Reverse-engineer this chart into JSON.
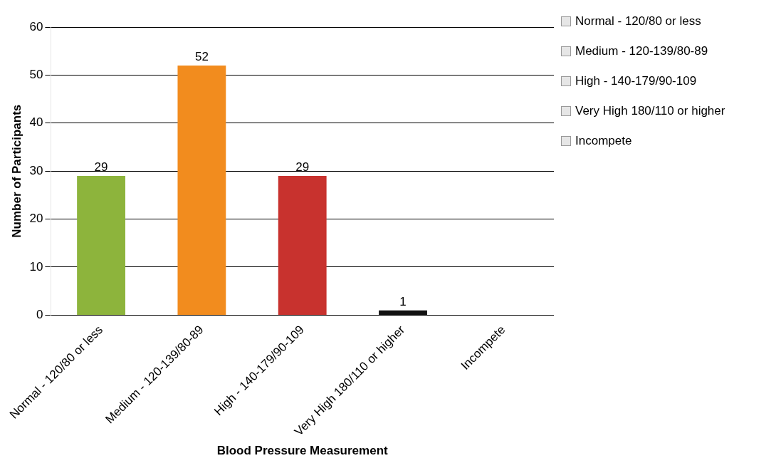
{
  "chart_data": {
    "type": "bar",
    "xlabel": "Blood Pressure Measurement",
    "ylabel": "Number of Participants",
    "categories": [
      "Normal - 120/80 or less",
      "Medium - 120-139/80-89",
      "High - 140-179/90-109",
      "Very High 180/110 or higher",
      "Incompete"
    ],
    "values": [
      29,
      52,
      29,
      1,
      null
    ],
    "colors": [
      "#8db43c",
      "#f28c1e",
      "#c8322e",
      "#111111",
      "#a6a6a6"
    ],
    "ylim": [
      0,
      60
    ],
    "yticks": [
      0,
      10,
      20,
      30,
      40,
      50,
      60
    ],
    "grid": "y",
    "data_labels": true
  }
}
